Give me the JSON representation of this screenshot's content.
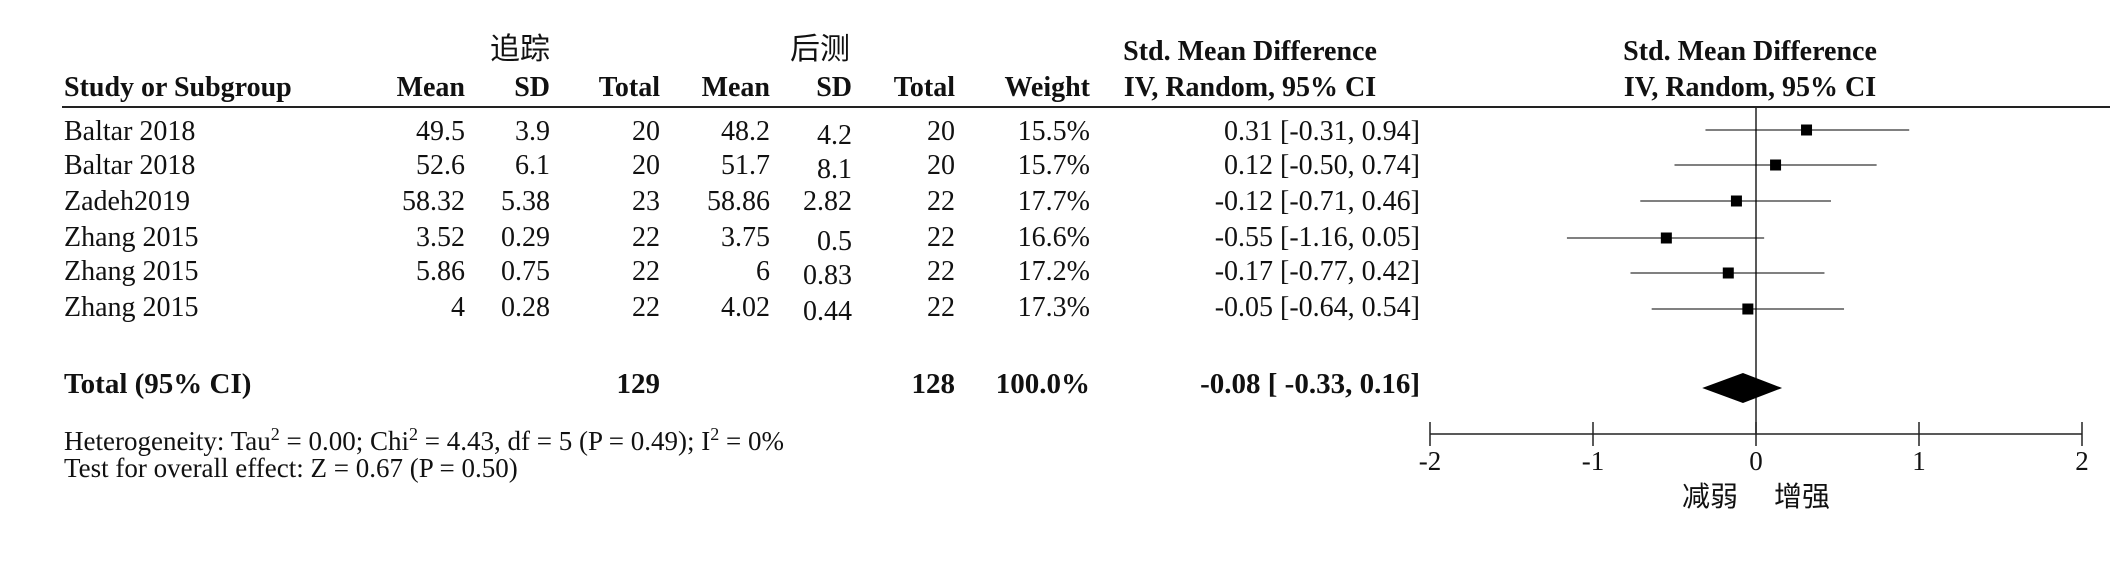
{
  "groups": {
    "left": "追踪",
    "right": "后测"
  },
  "headers": {
    "study": "Study or Subgroup",
    "mean1": "Mean",
    "sd1": "SD",
    "total1": "Total",
    "mean2": "Mean",
    "sd2": "SD",
    "total2": "Total",
    "weight": "Weight",
    "smd_line1": "Std. Mean Difference",
    "smd_line2": "IV, Random, 95% CI",
    "plot_line1": "Std. Mean Difference",
    "plot_line2": "IV, Random, 95% CI"
  },
  "rows": [
    {
      "study": "Baltar 2018",
      "mean1": "49.5",
      "sd1": "3.9",
      "total1": "20",
      "mean2": "48.2",
      "sd2": "4.2",
      "total2": "20",
      "weight": "15.5%",
      "ci": "0.31 [-0.31, 0.94]"
    },
    {
      "study": "Baltar 2018",
      "mean1": "52.6",
      "sd1": "6.1",
      "total1": "20",
      "mean2": "51.7",
      "sd2": "8.1",
      "total2": "20",
      "weight": "15.7%",
      "ci": "0.12 [-0.50, 0.74]"
    },
    {
      "study": "Zadeh2019",
      "mean1": "58.32",
      "sd1": "5.38",
      "total1": "23",
      "mean2": "58.86",
      "sd2": "2.82",
      "total2": "22",
      "weight": "17.7%",
      "ci": "-0.12 [-0.71, 0.46]"
    },
    {
      "study": "Zhang 2015",
      "mean1": "3.52",
      "sd1": "0.29",
      "total1": "22",
      "mean2": "3.75",
      "sd2": "0.5",
      "total2": "22",
      "weight": "16.6%",
      "ci": "-0.55 [-1.16, 0.05]"
    },
    {
      "study": "Zhang 2015",
      "mean1": "5.86",
      "sd1": "0.75",
      "total1": "22",
      "mean2": "6",
      "sd2": "0.83",
      "total2": "22",
      "weight": "17.2%",
      "ci": "-0.17 [-0.77, 0.42]"
    },
    {
      "study": "Zhang 2015",
      "mean1": "4",
      "sd1": "0.28",
      "total1": "22",
      "mean2": "4.02",
      "sd2": "0.44",
      "total2": "22",
      "weight": "17.3%",
      "ci": "-0.05 [-0.64, 0.54]"
    }
  ],
  "total": {
    "label": "Total (95% CI)",
    "total1": "129",
    "total2": "128",
    "weight": "100.0%",
    "ci": "-0.08 [ -0.33, 0.16]"
  },
  "heterogeneity": {
    "prefix": "Heterogeneity: Tau",
    "tau_sup": "2",
    "tau_val": " = 0.00; Chi",
    "chi_sup": "2",
    "chi_val": " = 4.43, df = 5 (P = 0.49); I",
    "i_sup": "2",
    "i_val": " = 0%"
  },
  "overall_effect": "Test for overall effect: Z = 0.67 (P = 0.50)",
  "chart_data": {
    "type": "scatter",
    "subtype": "forest-plot",
    "xlim": [
      -2,
      2
    ],
    "x_ticks": [
      -2,
      -1,
      0,
      1,
      2
    ],
    "tick_labels": [
      "-2",
      "-1",
      "0",
      "1",
      "2"
    ],
    "favours_left": "减弱",
    "favours_right": "增强",
    "points": [
      {
        "estimate": 0.31,
        "lower": -0.31,
        "upper": 0.94
      },
      {
        "estimate": 0.12,
        "lower": -0.5,
        "upper": 0.74
      },
      {
        "estimate": -0.12,
        "lower": -0.71,
        "upper": 0.46
      },
      {
        "estimate": -0.55,
        "lower": -1.16,
        "upper": 0.05
      },
      {
        "estimate": -0.17,
        "lower": -0.77,
        "upper": 0.42
      },
      {
        "estimate": -0.05,
        "lower": -0.64,
        "upper": 0.54
      }
    ],
    "pooled": {
      "estimate": -0.08,
      "lower": -0.33,
      "upper": 0.16
    },
    "colors": {
      "marker": "#000000",
      "line": "#000000",
      "axis": "#222222"
    }
  }
}
